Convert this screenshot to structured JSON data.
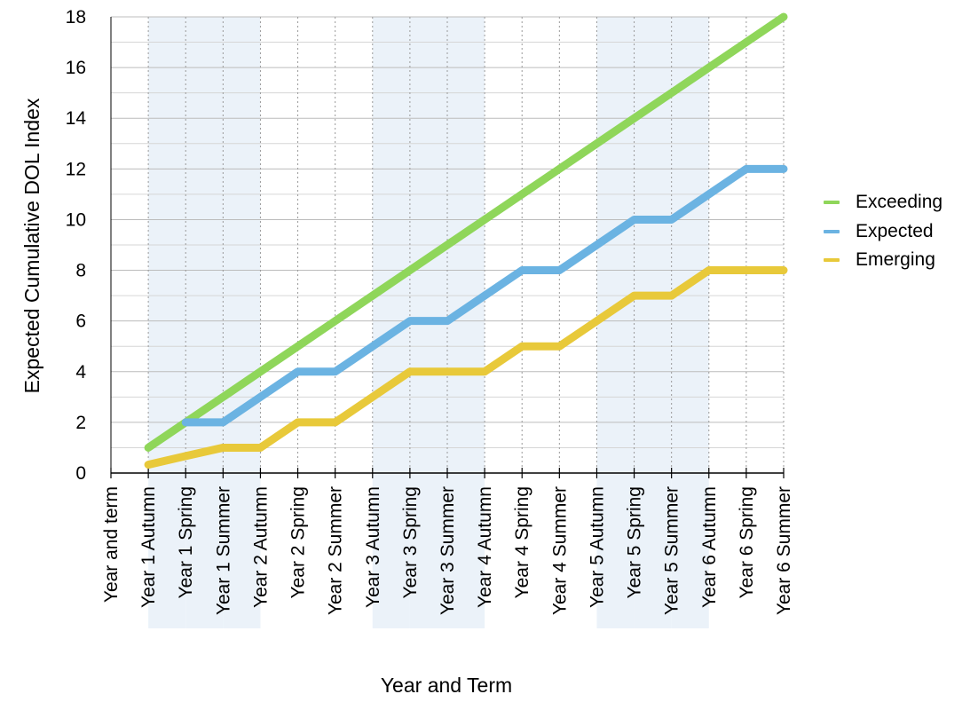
{
  "chart_data": {
    "type": "line",
    "ylabel": "Expected Cumulative DOL Index",
    "xlabel": "Year and Term",
    "ylim": [
      0,
      18
    ],
    "yticks": [
      0,
      2,
      4,
      6,
      8,
      10,
      12,
      14,
      16,
      18
    ],
    "categories": [
      "Year and term",
      "Year 1 Autumn",
      "Year 1 Spring",
      "Year 1 Summer",
      "Year 2 Autumn",
      "Year 2 Spring",
      "Year 2 Summer",
      "Year 3 Autumn",
      "Year 3 Spring",
      "Year 3 Summer",
      "Year 4 Autumn",
      "Year 4 Spring",
      "Year 4 Summer",
      "Year 5 Autumn",
      "Year 5 Spring",
      "Year 5 Summer",
      "Year 6 Autumn",
      "Year 6 Spring",
      "Year 6 Summer"
    ],
    "grid": true,
    "legend_position": "right",
    "series": [
      {
        "name": "Exceeding",
        "color": "#8fd65a",
        "values": [
          null,
          1,
          2,
          3,
          4,
          5,
          6,
          7,
          8,
          9,
          10,
          11,
          12,
          13,
          14,
          15,
          16,
          17,
          18
        ]
      },
      {
        "name": "Expected",
        "color": "#6bb3e2",
        "values": [
          null,
          null,
          2,
          2,
          3,
          4,
          4,
          5,
          6,
          6,
          7,
          8,
          8,
          9,
          10,
          10,
          11,
          12,
          12
        ]
      },
      {
        "name": "Emerging",
        "color": "#e8c93a",
        "values": [
          null,
          0.33,
          0.67,
          1,
          1,
          2,
          2,
          3,
          4,
          4,
          4,
          5,
          5,
          6,
          7,
          7,
          8,
          8,
          8
        ]
      }
    ]
  }
}
